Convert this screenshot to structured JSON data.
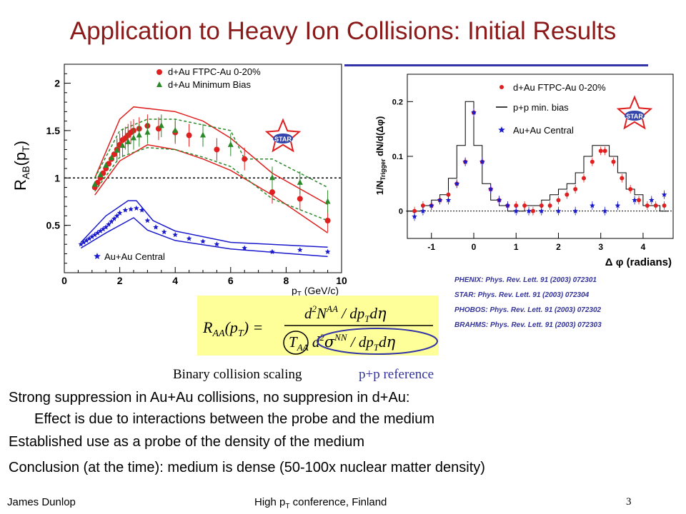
{
  "slide": {
    "title": "Application to Heavy Ion Collisions: Initial Results",
    "references": [
      "PHENIX: Phys. Rev. Lett. 91 (2003) 072301",
      "STAR: Phys. Rev. Lett. 91 (2003) 072304",
      "PHOBOS: Phys. Rev. Lett. 91 (2003) 072302",
      "BRAHMS: Phys. Rev. Lett. 91 (2003) 072303"
    ],
    "caption_left": "Binary collision scaling",
    "caption_right": "p+p reference",
    "bullets": [
      "Strong suppression in Au+Au collisions, no suppresion in d+Au:",
      "Effect is due to interactions between the probe and the medium",
      "Established use as a probe of the density of the medium",
      "Conclusion (at the time): medium is dense (50-100x nuclear matter density)"
    ],
    "footer_left": "James Dunlop",
    "footer_center": "High p",
    "footer_center_sub": "T",
    "footer_center_rest": " conference, Finland",
    "footer_page": "3",
    "colors": {
      "title": "#8b1a1a",
      "rule": "#3333aa",
      "red": "#e02020",
      "green": "#2a8a2a",
      "blue": "#1a1acc",
      "formula_bg": "#ffff99"
    },
    "formula": {
      "lhs": "R",
      "lhs_sub": "AA",
      "arg": "(p",
      "arg_sub": "T",
      "arg_close": ") ="
    }
  },
  "chart_data": [
    {
      "type": "scatter",
      "ylabel": "R",
      "ylabel_sub": "AB",
      "ylabel_rest": "(p",
      "ylabel_sub2": "T",
      "ylabel_close": ")",
      "xlabel": "p",
      "xlabel_sub": "T",
      "xlabel_rest": " (GeV/c)",
      "xlim": [
        0,
        10
      ],
      "ylim": [
        0,
        2.2
      ],
      "xticks": [
        0,
        2,
        4,
        6,
        8,
        10
      ],
      "yticks": [
        0.5,
        1,
        1.5,
        2
      ],
      "xticklabels": [
        "0",
        "2",
        "4",
        "6",
        "8",
        "10"
      ],
      "yticklabels": [
        "0.5",
        "1",
        "1.5",
        "2"
      ],
      "reference_line": 1,
      "logo": "STAR",
      "series": [
        {
          "name": "d+Au FTPC-Au 0-20%",
          "marker": "circle",
          "color": "#e02020",
          "x": [
            1.1,
            1.2,
            1.3,
            1.4,
            1.5,
            1.6,
            1.7,
            1.8,
            1.9,
            2.0,
            2.1,
            2.2,
            2.3,
            2.4,
            2.5,
            2.7,
            3.0,
            3.4,
            4.0,
            4.5,
            5.5,
            6.5,
            7.5,
            8.5,
            9.5
          ],
          "y": [
            0.9,
            0.95,
            1.0,
            1.05,
            1.1,
            1.15,
            1.2,
            1.25,
            1.3,
            1.35,
            1.4,
            1.42,
            1.45,
            1.48,
            1.5,
            1.52,
            1.55,
            1.52,
            1.48,
            1.45,
            1.3,
            1.2,
            0.85,
            0.78,
            0.55
          ]
        },
        {
          "name": "d+Au Minimum Bias",
          "marker": "triangle",
          "color": "#2a8a2a",
          "x": [
            1.1,
            1.3,
            1.5,
            1.7,
            1.9,
            2.1,
            2.3,
            2.5,
            2.7,
            3.0,
            3.5,
            4.0,
            5.0,
            6.0,
            7.5,
            8.5,
            9.5
          ],
          "y": [
            0.93,
            1.03,
            1.13,
            1.21,
            1.29,
            1.34,
            1.38,
            1.42,
            1.45,
            1.48,
            1.55,
            1.5,
            1.45,
            1.35,
            1.0,
            0.95,
            0.75
          ]
        },
        {
          "name": "Au+Au Central",
          "marker": "star",
          "color": "#1a1acc",
          "x": [
            0.6,
            0.7,
            0.8,
            0.9,
            1.0,
            1.1,
            1.2,
            1.3,
            1.4,
            1.5,
            1.6,
            1.7,
            1.8,
            1.9,
            2.0,
            2.2,
            2.4,
            2.6,
            2.8,
            3.0,
            3.3,
            3.6,
            4.0,
            4.5,
            5.0,
            5.5,
            6.5,
            7.5,
            8.5,
            9.5
          ],
          "y": [
            0.3,
            0.32,
            0.34,
            0.36,
            0.38,
            0.4,
            0.42,
            0.44,
            0.46,
            0.48,
            0.51,
            0.54,
            0.57,
            0.6,
            0.63,
            0.66,
            0.67,
            0.68,
            0.66,
            0.55,
            0.48,
            0.43,
            0.4,
            0.36,
            0.33,
            0.3,
            0.26,
            0.22,
            0.24,
            0.22
          ]
        }
      ],
      "band_note": "systematic band curves for each series"
    },
    {
      "type": "line",
      "ylabel": "1/N",
      "ylabel_sub": "Trigger",
      "ylabel_rest": " dN/d(Δφ)",
      "xlabel": "Δ  φ  (radians)",
      "xlim": [
        -1.57,
        4.71
      ],
      "ylim": [
        -0.05,
        0.25
      ],
      "xticks": [
        -1,
        0,
        1,
        2,
        3,
        4
      ],
      "yticks": [
        0,
        0.1,
        0.2
      ],
      "xticklabels": [
        "-1",
        "0",
        "1",
        "2",
        "3",
        "4"
      ],
      "yticklabels": [
        "0",
        "0.1",
        "0.2"
      ],
      "reference_line": 0,
      "logo": "STAR",
      "series": [
        {
          "name": "d+Au FTPC-Au 0-20%",
          "marker": "circle",
          "color": "#e02020",
          "x": [
            -1.4,
            -1.2,
            -1.0,
            -0.8,
            -0.6,
            -0.4,
            -0.2,
            0.0,
            0.2,
            0.4,
            0.6,
            0.8,
            1.0,
            1.2,
            1.4,
            1.6,
            1.8,
            2.0,
            2.2,
            2.4,
            2.6,
            2.8,
            3.0,
            3.1,
            3.3,
            3.5,
            3.7,
            3.9,
            4.1,
            4.3,
            4.5
          ],
          "y": [
            0.0,
            0.01,
            0.01,
            0.02,
            0.03,
            0.05,
            0.09,
            0.18,
            0.09,
            0.04,
            0.02,
            0.01,
            0.01,
            0.01,
            0.0,
            0.01,
            0.01,
            0.02,
            0.03,
            0.04,
            0.06,
            0.09,
            0.11,
            0.11,
            0.09,
            0.06,
            0.04,
            0.02,
            0.01,
            0.01,
            0.01
          ]
        },
        {
          "name": "p+p min. bias",
          "marker": "histogram",
          "color": "#000000",
          "x": [
            -1.5,
            -1.3,
            -1.1,
            -0.9,
            -0.7,
            -0.5,
            -0.3,
            -0.1,
            0.1,
            0.3,
            0.5,
            0.7,
            0.9,
            1.1,
            1.3,
            1.5,
            1.7,
            1.9,
            2.1,
            2.3,
            2.5,
            2.7,
            2.9,
            3.1,
            3.3,
            3.5,
            3.7,
            3.9,
            4.1,
            4.3,
            4.5
          ],
          "y": [
            0.0,
            0.0,
            0.01,
            0.02,
            0.03,
            0.06,
            0.12,
            0.2,
            0.12,
            0.05,
            0.02,
            0.01,
            0.0,
            0.0,
            0.01,
            0.01,
            0.02,
            0.03,
            0.04,
            0.05,
            0.07,
            0.1,
            0.12,
            0.12,
            0.1,
            0.07,
            0.04,
            0.03,
            0.01,
            0.01,
            0.0
          ]
        },
        {
          "name": "Au+Au Central",
          "marker": "star",
          "color": "#1a1acc",
          "x": [
            -1.4,
            -1.2,
            -1.0,
            -0.8,
            -0.6,
            -0.4,
            -0.2,
            0.0,
            0.2,
            0.4,
            0.6,
            0.8,
            1.0,
            1.3,
            1.6,
            2.0,
            2.4,
            2.8,
            3.1,
            3.4,
            3.8,
            4.2,
            4.5
          ],
          "y": [
            -0.01,
            0.0,
            0.01,
            0.02,
            0.02,
            0.05,
            0.09,
            0.18,
            0.09,
            0.04,
            0.02,
            0.01,
            0.0,
            0.0,
            0.0,
            0.0,
            0.0,
            0.01,
            0.0,
            0.01,
            0.02,
            0.02,
            0.03
          ]
        }
      ]
    }
  ]
}
